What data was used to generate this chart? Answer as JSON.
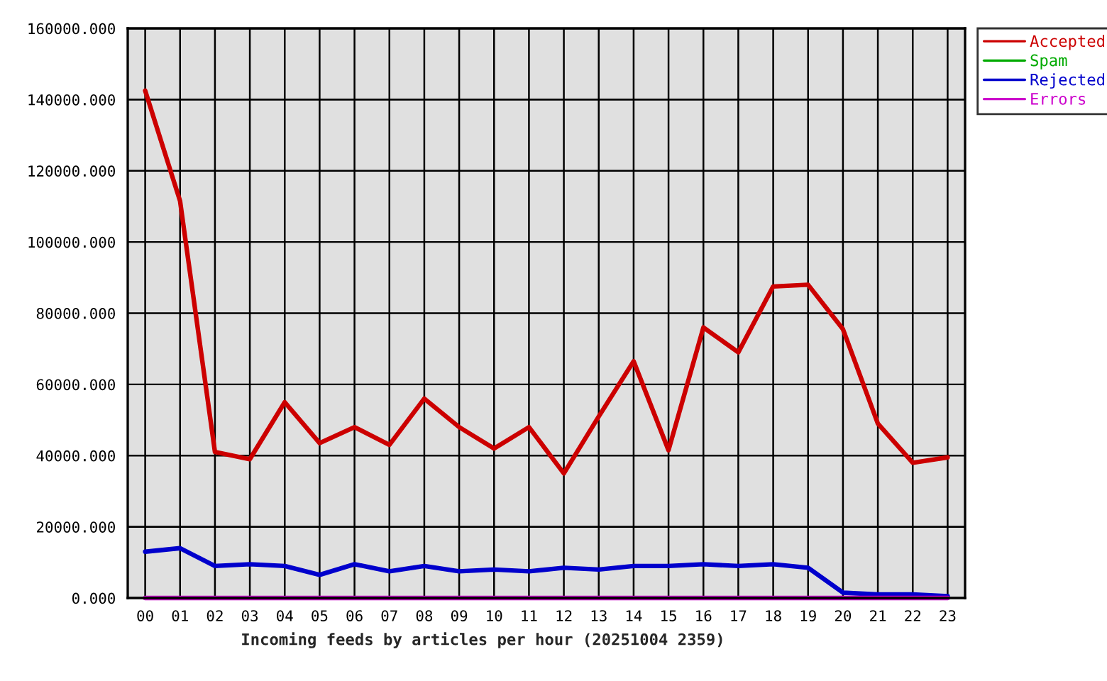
{
  "chart_data": {
    "type": "line",
    "xlabel": "Incoming feeds by articles per hour (20251004 2359)",
    "categories": [
      "00",
      "01",
      "02",
      "03",
      "04",
      "05",
      "06",
      "07",
      "08",
      "09",
      "10",
      "11",
      "12",
      "13",
      "14",
      "15",
      "16",
      "17",
      "18",
      "19",
      "20",
      "21",
      "22",
      "23"
    ],
    "series": [
      {
        "name": "Accepted",
        "color": "#cc0000",
        "values": [
          142500,
          111500,
          41000,
          39000,
          55000,
          43500,
          48000,
          43000,
          56000,
          48000,
          42000,
          48000,
          35000,
          51000,
          66500,
          41500,
          76000,
          69000,
          87500,
          88000,
          75500,
          49000,
          38000,
          39500
        ]
      },
      {
        "name": "Spam",
        "color": "#00aa00",
        "values": [
          null,
          null,
          null,
          null,
          null,
          null,
          null,
          null,
          null,
          null,
          null,
          null,
          null,
          null,
          null,
          null,
          null,
          null,
          null,
          null,
          null,
          null,
          null,
          null
        ]
      },
      {
        "name": "Rejected",
        "color": "#0000cc",
        "values": [
          13000,
          14000,
          9000,
          9500,
          9000,
          6500,
          9500,
          7500,
          9000,
          7500,
          8000,
          7500,
          8500,
          8000,
          9000,
          9000,
          9500,
          9000,
          9500,
          8500,
          1500,
          1000,
          1000,
          500
        ]
      },
      {
        "name": "Errors",
        "color": "#cc00cc",
        "values": [
          0,
          0,
          0,
          0,
          0,
          0,
          0,
          0,
          0,
          0,
          0,
          0,
          0,
          0,
          0,
          0,
          0,
          0,
          0,
          0,
          0,
          0,
          0,
          0
        ]
      }
    ],
    "ylim": [
      0,
      160000
    ],
    "yticks": [
      {
        "value": 0,
        "label": "0.000"
      },
      {
        "value": 20000,
        "label": "20000.000"
      },
      {
        "value": 40000,
        "label": "40000.000"
      },
      {
        "value": 60000,
        "label": "60000.000"
      },
      {
        "value": 80000,
        "label": "80000.000"
      },
      {
        "value": 100000,
        "label": "100000.000"
      },
      {
        "value": 120000,
        "label": "120000.000"
      },
      {
        "value": 140000,
        "label": "140000.000"
      },
      {
        "value": 160000,
        "label": "160000.000"
      }
    ],
    "grid": true,
    "legend": "top right"
  }
}
